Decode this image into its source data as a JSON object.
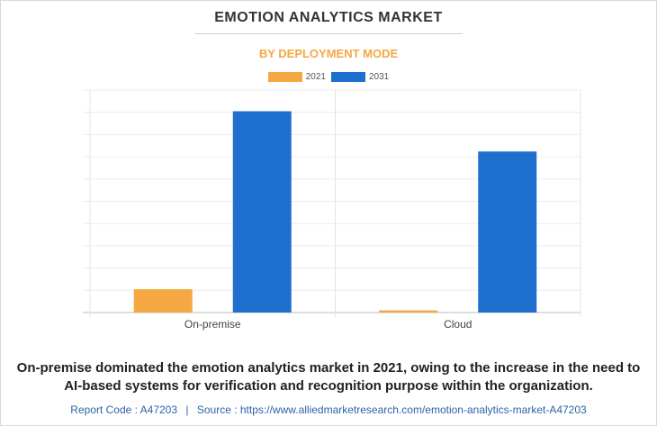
{
  "chart_data": {
    "type": "bar",
    "title": "EMOTION ANALYTICS MARKET",
    "subtitle": "BY DEPLOYMENT MODE",
    "categories": [
      "On-premise",
      "Cloud"
    ],
    "series": [
      {
        "name": "2021",
        "color": "#f5a742",
        "values": [
          1.1,
          0.1
        ]
      },
      {
        "name": "2031",
        "color": "#1f6fcf",
        "values": [
          9.5,
          7.6
        ]
      }
    ],
    "xlabel": "",
    "ylabel": "",
    "ylim": [
      0,
      10.5
    ],
    "grid": true,
    "legend": "top-center"
  },
  "caption": "On-premise dominated the emotion analytics market in 2021, owing to the increase in the need to AI-based systems for verification and recognition purpose within the organization.",
  "footer": {
    "report_code": "Report Code : A47203",
    "separator": "|",
    "source": "Source : https://www.alliedmarketresearch.com/emotion-analytics-market-A47203"
  }
}
